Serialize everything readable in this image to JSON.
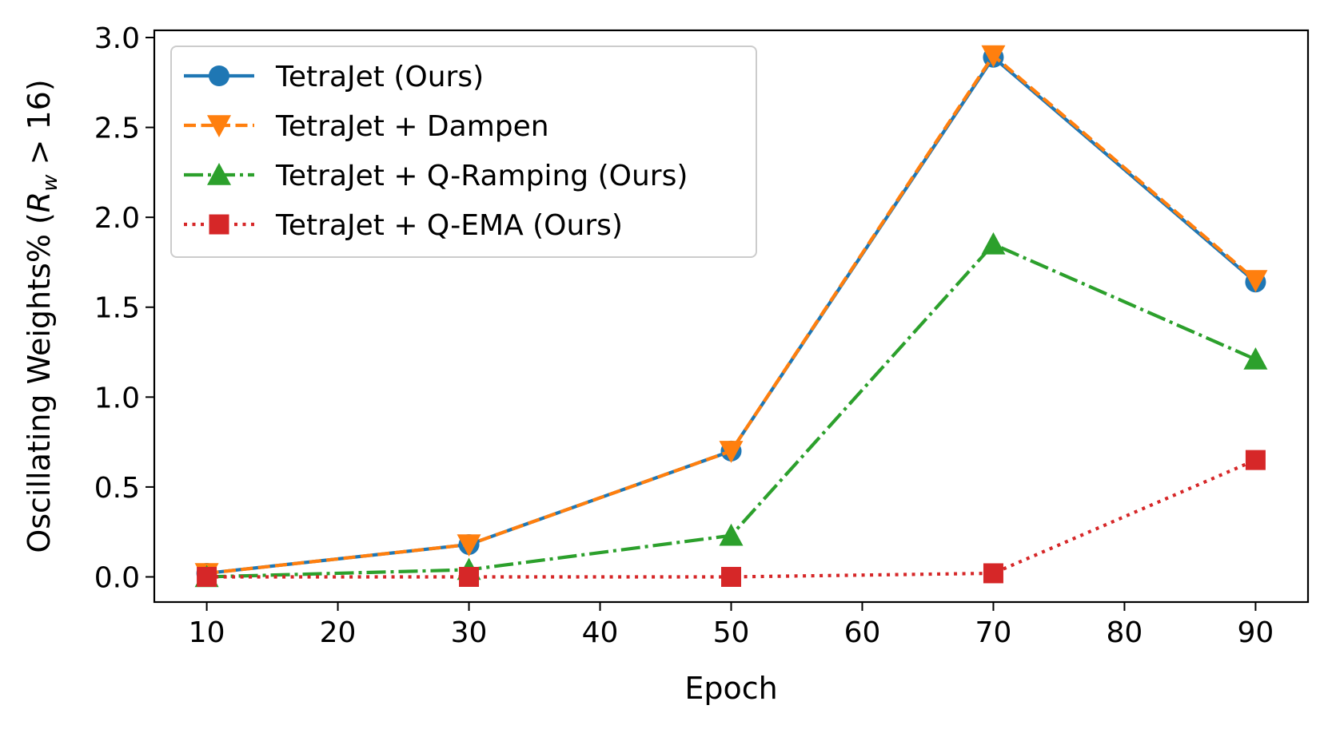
{
  "chart_data": {
    "type": "line",
    "title": "",
    "xlabel": "Epoch",
    "ylabel": "Oscillating Weights% (",
    "ylabel_math": "R",
    "ylabel_sub": "w",
    "ylabel_tail": " > 16)",
    "x": [
      10,
      30,
      50,
      70,
      90
    ],
    "xlim": [
      6,
      94
    ],
    "ylim": [
      -0.14,
      3.04
    ],
    "xticks": [
      10,
      20,
      30,
      40,
      50,
      60,
      70,
      80,
      90
    ],
    "xtick_labels": [
      "10",
      "20",
      "30",
      "40",
      "50",
      "60",
      "70",
      "80",
      "90"
    ],
    "yticks": [
      0.0,
      0.5,
      1.0,
      1.5,
      2.0,
      2.5,
      3.0
    ],
    "ytick_labels": [
      "0.0",
      "0.5",
      "1.0",
      "1.5",
      "2.0",
      "2.5",
      "3.0"
    ],
    "grid": false,
    "legend_position": "top-left",
    "series": [
      {
        "name": "TetraJet (Ours)",
        "values": [
          0.02,
          0.18,
          0.7,
          2.89,
          1.64
        ],
        "color": "#1f77b4",
        "linestyle": "solid",
        "marker": "circle"
      },
      {
        "name": "TetraJet + Dampen",
        "values": [
          0.02,
          0.18,
          0.7,
          2.9,
          1.65
        ],
        "color": "#ff7f0e",
        "linestyle": "dashed",
        "marker": "triangle-down"
      },
      {
        "name": "TetraJet + Q-Ramping (Ours)",
        "values": [
          0.0,
          0.04,
          0.23,
          1.85,
          1.21
        ],
        "color": "#2ca02c",
        "linestyle": "dashdot",
        "marker": "triangle-up"
      },
      {
        "name": "TetraJet + Q-EMA (Ours)",
        "values": [
          0.0,
          0.0,
          0.0,
          0.02,
          0.65
        ],
        "color": "#d62728",
        "linestyle": "dotted",
        "marker": "square"
      }
    ]
  }
}
